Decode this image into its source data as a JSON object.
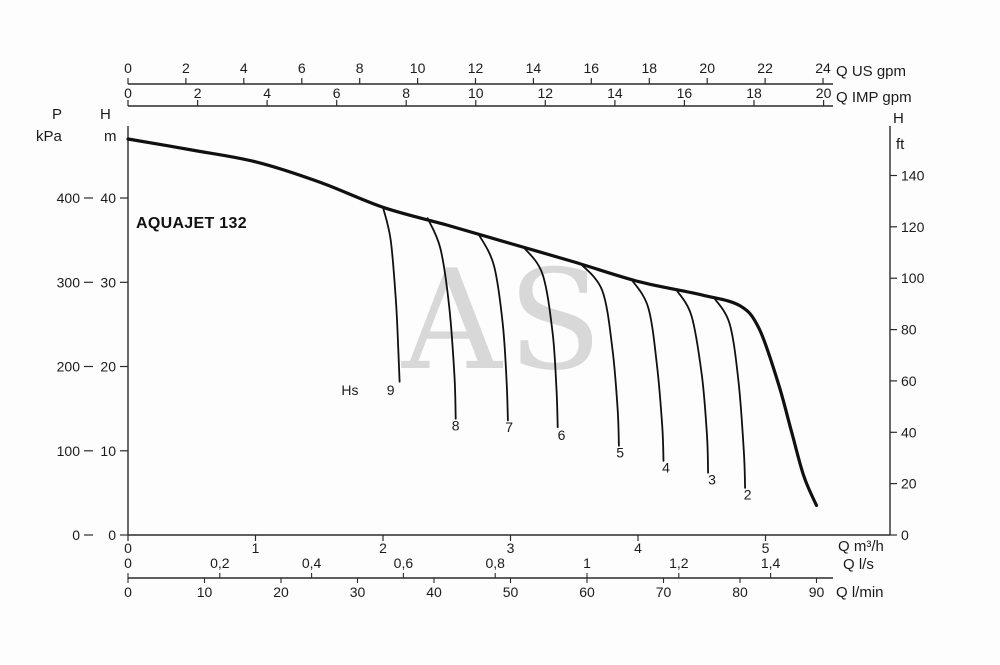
{
  "window": {
    "background": "#fdfdfd"
  },
  "chart_data": {
    "type": "line",
    "title": "AQUAJET 132",
    "watermark": "AS",
    "colors": {
      "curve": "#101010",
      "axis": "#2b2b2b",
      "text": "#1b1b1b",
      "watermark": "#d8d8d8"
    },
    "unit_labels": {
      "us_gpm": "Q US gpm",
      "imp_gpm": "Q IMP gpm",
      "pressure": "P",
      "kpa": "kPa",
      "head_left": "H",
      "m": "m",
      "head_right": "H",
      "ft": "ft",
      "m3h": "Q m³/h",
      "ls": "Q l/s",
      "lmin": "Q l/min"
    },
    "scales": {
      "us_gpm": {
        "labels": [
          "0",
          "2",
          "4",
          "6",
          "8",
          "10",
          "12",
          "14",
          "16",
          "18",
          "20",
          "22",
          "24"
        ],
        "values": [
          0,
          2,
          4,
          6,
          8,
          10,
          12,
          14,
          16,
          18,
          20,
          22,
          24
        ]
      },
      "imp_gpm": {
        "labels": [
          "0",
          "2",
          "4",
          "6",
          "8",
          "10",
          "12",
          "14",
          "16",
          "18",
          "20"
        ],
        "values": [
          0,
          2,
          4,
          6,
          8,
          10,
          12,
          14,
          16,
          18,
          20
        ]
      },
      "m3h": {
        "labels": [
          "0",
          "1",
          "2",
          "3",
          "4",
          "5"
        ],
        "values": [
          0,
          1,
          2,
          3,
          4,
          5
        ]
      },
      "ls": {
        "labels": [
          "0",
          "0,2",
          "0,4",
          "0,6",
          "0,8",
          "1",
          "1,2",
          "1,4"
        ],
        "values": [
          0,
          0.2,
          0.4,
          0.6,
          0.8,
          1,
          1.2,
          1.4
        ]
      },
      "lmin": {
        "labels": [
          "0",
          "10",
          "20",
          "30",
          "40",
          "50",
          "60",
          "70",
          "80",
          "90"
        ],
        "values": [
          0,
          10,
          20,
          30,
          40,
          50,
          60,
          70,
          80,
          90
        ]
      },
      "m": {
        "labels": [
          "0",
          "10",
          "20",
          "30",
          "40"
        ],
        "values": [
          0,
          10,
          20,
          30,
          40
        ]
      },
      "kpa": {
        "labels": [
          "0",
          "100",
          "200",
          "300",
          "400"
        ],
        "values": [
          0,
          100,
          200,
          300,
          400
        ]
      },
      "ft": {
        "labels": [
          "0",
          "20",
          "40",
          "60",
          "80",
          "100",
          "120",
          "140"
        ],
        "values": [
          0,
          20,
          40,
          60,
          80,
          100,
          120,
          140
        ]
      }
    },
    "axis_ranges": {
      "q_m3h": [
        0,
        5.6
      ],
      "h_m": [
        0,
        48
      ]
    },
    "main_curve_units": "Q in m3/h, H in m",
    "main_curve": [
      [
        0,
        47.0
      ],
      [
        0.5,
        45.7
      ],
      [
        1.0,
        44.3
      ],
      [
        1.5,
        41.9
      ],
      [
        2.0,
        38.9
      ],
      [
        2.5,
        36.8
      ],
      [
        3.0,
        34.6
      ],
      [
        3.5,
        32.4
      ],
      [
        4.0,
        30.1
      ],
      [
        4.5,
        28.5
      ],
      [
        4.8,
        27.2
      ],
      [
        4.95,
        24.5
      ],
      [
        5.1,
        18.0
      ],
      [
        5.2,
        12.5
      ],
      [
        5.3,
        7.0
      ],
      [
        5.4,
        3.5
      ]
    ],
    "hs_label": {
      "text": "Hs",
      "pos": [
        1.74,
        16.6
      ]
    },
    "hs_curves": [
      {
        "label": "9",
        "label_pos": [
          2.06,
          16.6
        ],
        "points": [
          [
            2.0,
            38.9
          ],
          [
            2.06,
            35.0
          ],
          [
            2.1,
            28.0
          ],
          [
            2.12,
            22.0
          ],
          [
            2.13,
            18.2
          ]
        ]
      },
      {
        "label": "8",
        "label_pos": [
          2.57,
          12.4
        ],
        "points": [
          [
            2.35,
            37.6
          ],
          [
            2.45,
            34.0
          ],
          [
            2.52,
            27.0
          ],
          [
            2.56,
            19.0
          ],
          [
            2.57,
            13.8
          ]
        ]
      },
      {
        "label": "7",
        "label_pos": [
          2.99,
          12.2
        ],
        "points": [
          [
            2.75,
            35.7
          ],
          [
            2.87,
            32.0
          ],
          [
            2.94,
            25.0
          ],
          [
            2.97,
            18.0
          ],
          [
            2.98,
            13.6
          ]
        ]
      },
      {
        "label": "6",
        "label_pos": [
          3.4,
          11.3
        ],
        "points": [
          [
            3.1,
            34.2
          ],
          [
            3.25,
            31.0
          ],
          [
            3.33,
            24.0
          ],
          [
            3.36,
            17.5
          ],
          [
            3.37,
            12.8
          ]
        ]
      },
      {
        "label": "5",
        "label_pos": [
          3.86,
          9.2
        ],
        "points": [
          [
            3.55,
            32.2
          ],
          [
            3.72,
            29.0
          ],
          [
            3.8,
            22.0
          ],
          [
            3.84,
            15.0
          ],
          [
            3.85,
            10.6
          ]
        ]
      },
      {
        "label": "4",
        "label_pos": [
          4.22,
          7.4
        ],
        "points": [
          [
            3.95,
            30.3
          ],
          [
            4.08,
            27.0
          ],
          [
            4.15,
            20.0
          ],
          [
            4.19,
            13.0
          ],
          [
            4.2,
            8.8
          ]
        ]
      },
      {
        "label": "3",
        "label_pos": [
          4.58,
          6.0
        ],
        "points": [
          [
            4.3,
            29.1
          ],
          [
            4.42,
            26.0
          ],
          [
            4.5,
            19.0
          ],
          [
            4.54,
            12.0
          ],
          [
            4.55,
            7.4
          ]
        ]
      },
      {
        "label": "2",
        "label_pos": [
          4.86,
          4.2
        ],
        "points": [
          [
            4.6,
            28.1
          ],
          [
            4.72,
            25.0
          ],
          [
            4.79,
            18.0
          ],
          [
            4.83,
            10.0
          ],
          [
            4.84,
            5.6
          ]
        ]
      }
    ]
  }
}
